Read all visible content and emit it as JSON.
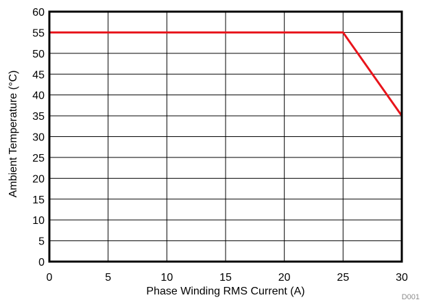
{
  "chart_data": {
    "type": "line",
    "title": "",
    "xlabel": "Phase Winding RMS Current (A)",
    "ylabel": "Ambient Temperature (°C)",
    "xlim": [
      0,
      30
    ],
    "ylim": [
      0,
      60
    ],
    "x_ticks": [
      0,
      5,
      10,
      15,
      20,
      25,
      30
    ],
    "y_ticks": [
      0,
      5,
      10,
      15,
      20,
      25,
      30,
      35,
      40,
      45,
      50,
      55,
      60
    ],
    "grid": true,
    "legend": "none",
    "series": [
      {
        "color": "#e8141b",
        "points": [
          [
            0,
            55
          ],
          [
            25,
            55
          ],
          [
            30,
            35
          ]
        ]
      }
    ]
  },
  "figure_code": "D001"
}
